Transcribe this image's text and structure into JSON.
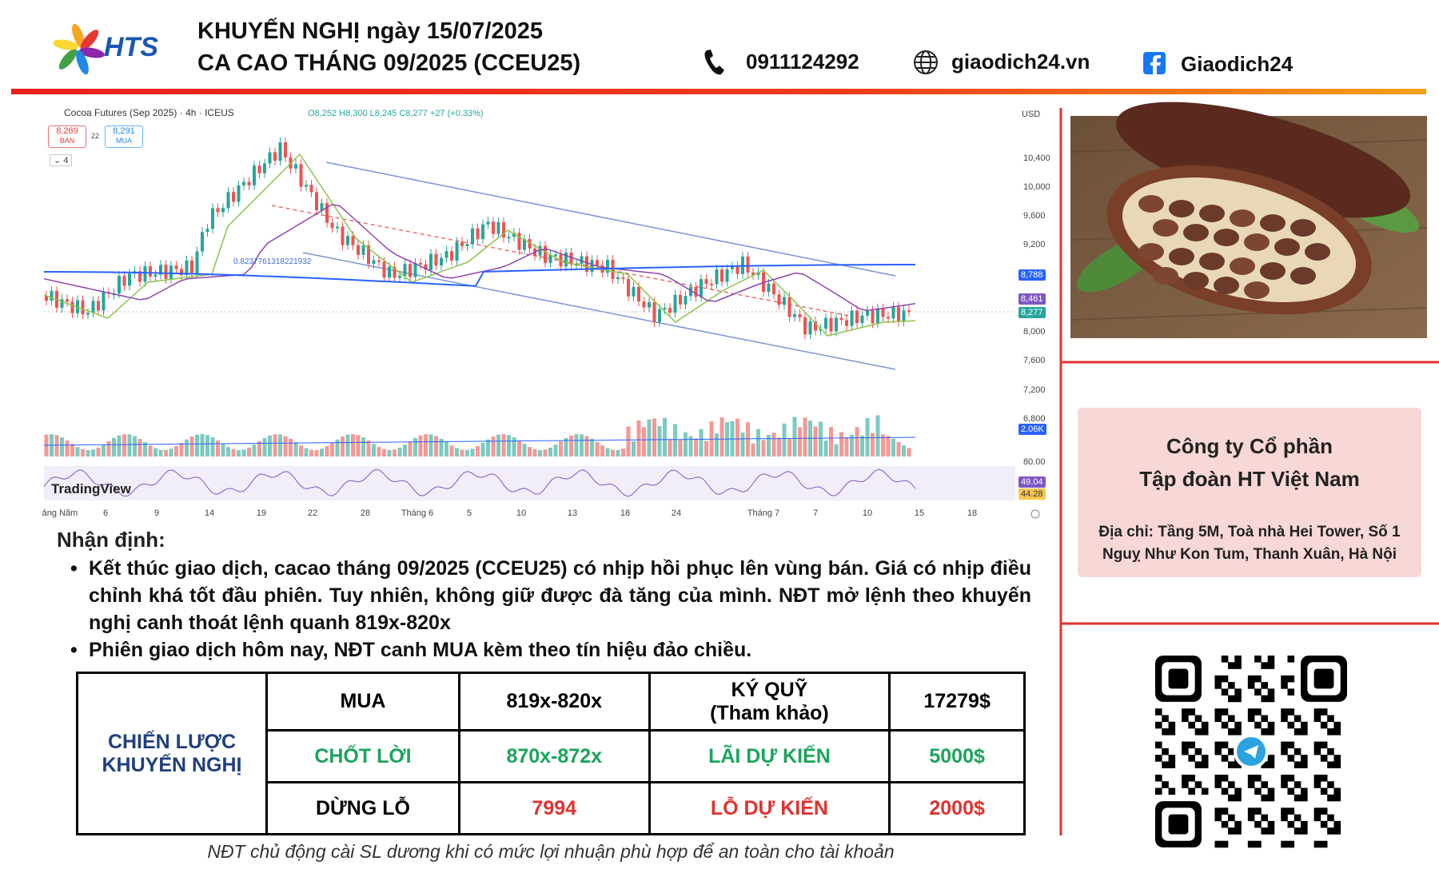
{
  "header": {
    "logo_text": "HTS",
    "title_line1": "KHUYẾN NGHỊ ngày 15/07/2025",
    "title_line2": "CA CAO THÁNG 09/2025 (CCEU25)",
    "phone": "0911124292",
    "website": "giaodich24.vn",
    "facebook": "Giaodich24"
  },
  "chart_screenshot": {
    "symbol": "Cocoa Futures (Sep 2025) · 4h · ICEUS",
    "ohlc": "O8,252 H8,300 L8,245 C8,277 +27 (+0.33%)",
    "sell_price": "8,269",
    "sell_label": "BÁN",
    "spread": "22",
    "buy_price": "8,291",
    "buy_label": "MUA",
    "indicator_count": "4",
    "currency": "USD",
    "fib_label": "0.8237761318221932",
    "watermark": "TradingView",
    "price_axis": [
      "10,400",
      "10,000",
      "9,600",
      "9,200",
      "8,000",
      "7,600",
      "7,200",
      "6,800",
      "80.00"
    ],
    "price_tags": [
      "8,788",
      "8,461",
      "8,277",
      "2.06K",
      "49.04",
      "44.28"
    ],
    "date_axis": [
      "ảng Năm",
      "6",
      "9",
      "14",
      "19",
      "22",
      "28",
      "Tháng 6",
      "5",
      "10",
      "13",
      "18",
      "24",
      "Tháng 7",
      "7",
      "10",
      "15",
      "18"
    ]
  },
  "analysis": {
    "heading": "Nhận định:",
    "bullets": [
      "Kết thúc giao dịch, cacao tháng 09/2025 (CCEU25) có nhịp hồi phục lên vùng bán. Giá có nhịp điều chỉnh khá tốt đầu phiên. Tuy nhiên, không giữ được đà tăng của mình. NĐT mở lệnh theo khuyến nghị canh thoát lệnh quanh 819x-820x",
      "Phiên giao dịch hôm nay, NĐT canh MUA kèm theo tín hiệu đảo chiều."
    ]
  },
  "strategy_table": {
    "label": "CHIẾN LƯỢC\nKHUYẾN NGHỊ",
    "rows": [
      [
        "MUA",
        "819x-820x",
        "KÝ QUỸ\n(Tham khảo)",
        "17279$"
      ],
      [
        "CHỐT LỜI",
        "870x-872x",
        "LÃI DỰ KIẾN",
        "5000$"
      ],
      [
        "DỪNG LỖ",
        "7994",
        "LỖ DỰ KIẾN",
        "2000$"
      ]
    ]
  },
  "note": "NĐT chủ động cài SL dương khi có mức lợi nhuận phù hợp để an toàn cho tài khoản",
  "company": {
    "name": "Công ty Cổ phần\nTập đoàn HT Việt Nam",
    "address": "Địa chỉ: Tầng 5M, Toà nhà Hei Tower, Số 1 Nguỵ Như Kon Tum, Thanh Xuân, Hà Nội"
  }
}
